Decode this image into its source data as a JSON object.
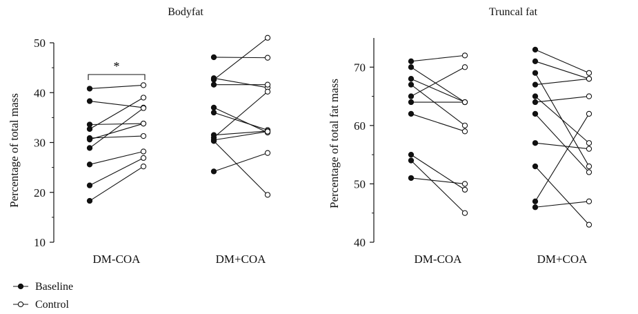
{
  "legend": {
    "baseline_label": "Baseline",
    "control_label": "Control",
    "placement": "bottom-left"
  },
  "colors": {
    "ink": "#111111",
    "background": "#ffffff"
  },
  "chart_data": [
    {
      "type": "paired-dot",
      "title": "Bodyfat",
      "ylabel": "Percentage of total mass",
      "xlabel": "",
      "ylim": [
        10,
        50
      ],
      "yticks": [
        10,
        20,
        30,
        40,
        50
      ],
      "categories": [
        "DM-COA",
        "DM+COA"
      ],
      "annotation": "*",
      "annotation_group": "DM-COA",
      "groups": [
        {
          "name": "DM-COA",
          "baseline": [
            40.8,
            38.3,
            33.6,
            32.7,
            30.9,
            30.6,
            28.9,
            25.6,
            21.4,
            18.3
          ],
          "control": [
            41.5,
            37.0,
            33.8,
            39.0,
            31.3,
            33.8,
            36.9,
            28.2,
            26.9,
            25.2
          ]
        },
        {
          "name": "DM+COA",
          "baseline": [
            47.1,
            42.9,
            42.6,
            41.6,
            37.0,
            36.0,
            31.5,
            31.0,
            30.5,
            30.3,
            24.2
          ],
          "control": [
            47.0,
            41.0,
            51.0,
            41.6,
            32.0,
            32.5,
            32.3,
            40.2,
            32.2,
            19.5,
            27.9
          ]
        }
      ]
    },
    {
      "type": "paired-dot",
      "title": "Truncal fat",
      "ylabel": "Percentage of total fat mass",
      "xlabel": "",
      "ylim": [
        40,
        75
      ],
      "yticks": [
        40,
        50,
        60,
        70
      ],
      "categories": [
        "DM-COA",
        "DM+COA"
      ],
      "groups": [
        {
          "name": "DM-COA",
          "baseline": [
            71,
            70,
            68,
            67,
            65,
            64,
            62,
            55,
            54,
            51
          ],
          "control": [
            72,
            64,
            64,
            60,
            70,
            64,
            59,
            49,
            45,
            50
          ]
        },
        {
          "name": "DM+COA",
          "baseline": [
            73,
            71,
            69,
            67,
            65,
            64,
            62,
            57,
            53,
            47,
            46
          ],
          "control": [
            69,
            68,
            53,
            68,
            57,
            65,
            52,
            56,
            43,
            62,
            47
          ]
        }
      ]
    }
  ]
}
